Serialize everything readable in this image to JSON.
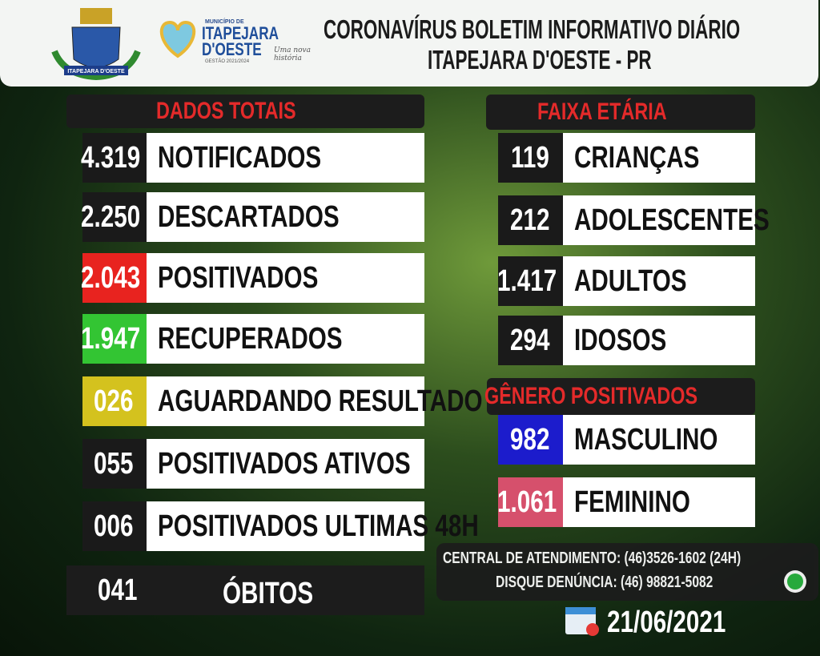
{
  "header": {
    "crest": "ITAPEJARA D'OESTE",
    "logo": {
      "kicker": "MUNICÍPIO DE",
      "name_line1": "ITAPEJARA",
      "name_line2": "D'OESTE",
      "term": "GESTÃO 2021/2024",
      "slogan": "Uma nova história"
    },
    "title_line1": "CORONAVÍRUS BOLETIM INFORMATIVO DIÁRIO",
    "title_line2": "ITAPEJARA D'OESTE - PR"
  },
  "totals": {
    "title": "DADOS TOTAIS",
    "rows": [
      {
        "value": "4.319",
        "label": "NOTIFICADOS",
        "color": "#1a1a1a"
      },
      {
        "value": "2.250",
        "label": "DESCARTADOS",
        "color": "#1a1a1a"
      },
      {
        "value": "2.043",
        "label": "POSITIVADOS",
        "color": "#e8231f"
      },
      {
        "value": "1.947",
        "label": "RECUPERADOS",
        "color": "#33c533"
      },
      {
        "value": "026",
        "label": "AGUARDANDO RESULTADO",
        "color": "#d4c21e"
      },
      {
        "value": "055",
        "label": "POSITIVADOS ATIVOS",
        "color": "#1a1a1a"
      },
      {
        "value": "006",
        "label": "POSITIVADOS ULTIMAS 48H",
        "color": "#1a1a1a"
      }
    ],
    "deaths": {
      "value": "041",
      "label": "ÓBITOS"
    }
  },
  "age": {
    "title": "FAIXA ETÁRIA",
    "rows": [
      {
        "value": "119",
        "label": "CRIANÇAS",
        "color": "#1a1a1a"
      },
      {
        "value": "212",
        "label": "ADOLESCENTES",
        "color": "#1a1a1a"
      },
      {
        "value": "1.417",
        "label": "ADULTOS",
        "color": "#1a1a1a"
      },
      {
        "value": "294",
        "label": "IDOSOS",
        "color": "#1a1a1a"
      }
    ]
  },
  "gender": {
    "title": "GÊNERO POSITIVADOS",
    "rows": [
      {
        "value": "982",
        "label": "MASCULINO",
        "color": "#1c1ccc"
      },
      {
        "value": "1.061",
        "label": "FEMININO",
        "color": "#d6506c"
      }
    ]
  },
  "contact": {
    "line1": "CENTRAL DE ATENDIMENTO: (46)3526-1602 (24H)",
    "line2": "DISQUE DENÚNCIA: (46) 98821-5082"
  },
  "date": "21/06/2021"
}
